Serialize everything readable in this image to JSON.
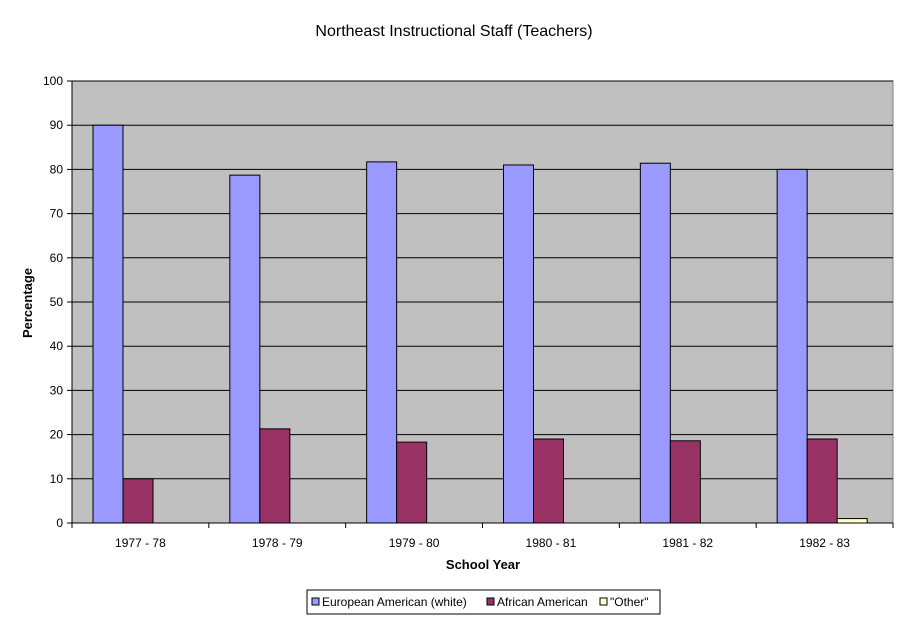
{
  "chart_data": {
    "type": "bar",
    "title": "Northeast Instructional Staff (Teachers)",
    "xlabel": "School Year",
    "ylabel": "Percentage",
    "categories": [
      "1977 - 78",
      "1978 - 79",
      "1979 - 80",
      "1980 - 81",
      "1981 - 82",
      "1982 - 83"
    ],
    "ylim": [
      0,
      100
    ],
    "yticks": [
      0,
      10,
      20,
      30,
      40,
      50,
      60,
      70,
      80,
      90,
      100
    ],
    "grid": true,
    "legend_position": "bottom",
    "plot_background": "#c0c0c0",
    "series": [
      {
        "name": "European American (white)",
        "color": "#9999ff",
        "values": [
          90,
          78.7,
          81.7,
          81,
          81.4,
          80
        ]
      },
      {
        "name": "African American",
        "color": "#993366",
        "values": [
          10,
          21.3,
          18.3,
          19,
          18.6,
          19
        ]
      },
      {
        "name": "\"Other\"",
        "color": "#ffffcc",
        "values": [
          0,
          0,
          0,
          0,
          0,
          1
        ]
      }
    ]
  }
}
